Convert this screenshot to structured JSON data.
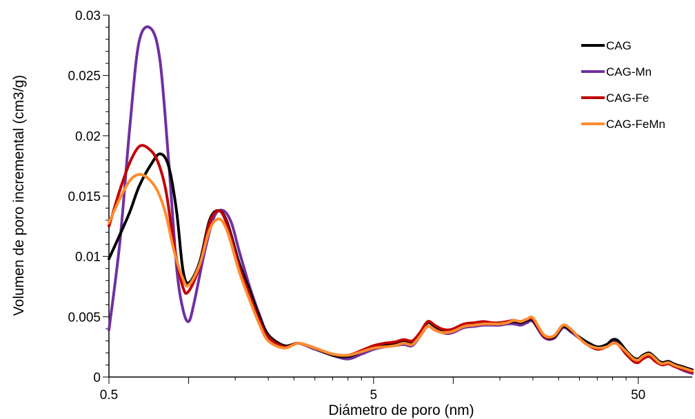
{
  "chart_data": {
    "type": "line",
    "xlabel": "Diámetro de poro (nm)",
    "ylabel": "Volumen de poro incremental (cm3/g)",
    "x_scale": "log",
    "xlim": [
      0.5,
      80
    ],
    "ylim": [
      0,
      0.03
    ],
    "x_ticks": [
      {
        "value": 0.5,
        "label": "0.5"
      },
      {
        "value": 5,
        "label": "5"
      },
      {
        "value": 50,
        "label": "50"
      }
    ],
    "y_ticks": [
      {
        "value": 0,
        "label": "0"
      },
      {
        "value": 0.005,
        "label": "0.005"
      },
      {
        "value": 0.01,
        "label": "0.01"
      },
      {
        "value": 0.015,
        "label": "0.015"
      },
      {
        "value": 0.02,
        "label": "0.02"
      },
      {
        "value": 0.025,
        "label": "0.025"
      },
      {
        "value": 0.03,
        "label": "0.03"
      }
    ],
    "grid": false,
    "legend_position": "top-right",
    "series": [
      {
        "name": "CAG",
        "color": "#000000",
        "x": [
          0.5,
          0.55,
          0.6,
          0.65,
          0.72,
          0.78,
          0.84,
          0.9,
          0.95,
          1.0,
          1.1,
          1.2,
          1.3,
          1.4,
          1.55,
          1.7,
          1.85,
          2.0,
          2.3,
          2.6,
          3.0,
          3.5,
          4.0,
          4.5,
          5.0,
          5.5,
          6.0,
          6.5,
          7.0,
          7.5,
          8.0,
          8.5,
          9.0,
          9.5,
          10.0,
          11,
          12,
          13,
          14,
          15,
          16,
          17,
          18,
          19,
          20,
          22,
          24,
          26,
          28,
          30,
          32,
          35,
          38,
          40,
          42,
          45,
          48,
          50,
          52,
          55,
          58,
          60,
          62,
          65,
          68,
          70,
          75,
          80
        ],
        "y": [
          0.0098,
          0.0118,
          0.0137,
          0.0158,
          0.0176,
          0.0185,
          0.0175,
          0.0138,
          0.009,
          0.0078,
          0.0095,
          0.013,
          0.0138,
          0.0128,
          0.0095,
          0.0072,
          0.005,
          0.0035,
          0.0026,
          0.0028,
          0.0024,
          0.0018,
          0.0017,
          0.0021,
          0.0025,
          0.0027,
          0.0028,
          0.003,
          0.0029,
          0.0036,
          0.0045,
          0.0042,
          0.0039,
          0.0038,
          0.0039,
          0.0043,
          0.0044,
          0.0045,
          0.0044,
          0.0044,
          0.0045,
          0.0046,
          0.0045,
          0.0047,
          0.0047,
          0.0034,
          0.0033,
          0.0042,
          0.0038,
          0.0033,
          0.0029,
          0.0025,
          0.0027,
          0.0031,
          0.003,
          0.0022,
          0.0016,
          0.0015,
          0.0018,
          0.002,
          0.0016,
          0.0013,
          0.0012,
          0.0013,
          0.0011,
          0.001,
          0.0008,
          0.0006
        ]
      },
      {
        "name": "CAG-Mn",
        "color": "#7030A0",
        "x": [
          0.5,
          0.55,
          0.6,
          0.65,
          0.72,
          0.78,
          0.84,
          0.9,
          0.95,
          1.0,
          1.05,
          1.15,
          1.25,
          1.35,
          1.45,
          1.55,
          1.7,
          1.85,
          2.0,
          2.3,
          2.6,
          3.0,
          3.5,
          4.0,
          4.5,
          5.0,
          5.5,
          6.0,
          6.5,
          7.0,
          7.5,
          8.0,
          8.5,
          9.0,
          9.5,
          10.0,
          11,
          12,
          13,
          14,
          15,
          16,
          17,
          18,
          19,
          20,
          22,
          24,
          26,
          28,
          30,
          32,
          35,
          38,
          40,
          42,
          45,
          48,
          50,
          52,
          55,
          58,
          60,
          62,
          65,
          68,
          70,
          75,
          80
        ],
        "y": [
          0.0039,
          0.0112,
          0.0208,
          0.0278,
          0.0289,
          0.0262,
          0.018,
          0.0092,
          0.0057,
          0.0046,
          0.0062,
          0.0104,
          0.0133,
          0.0138,
          0.0128,
          0.0105,
          0.0075,
          0.0052,
          0.0035,
          0.0025,
          0.0028,
          0.0023,
          0.0018,
          0.0015,
          0.0019,
          0.0023,
          0.0025,
          0.0026,
          0.0027,
          0.0026,
          0.0034,
          0.0042,
          0.0039,
          0.0037,
          0.0036,
          0.0037,
          0.0041,
          0.0042,
          0.0043,
          0.0043,
          0.0043,
          0.0044,
          0.0044,
          0.0043,
          0.0045,
          0.0046,
          0.0033,
          0.0032,
          0.0041,
          0.0037,
          0.0032,
          0.0028,
          0.0024,
          0.0026,
          0.0029,
          0.0028,
          0.0021,
          0.0015,
          0.0014,
          0.0017,
          0.0019,
          0.0015,
          0.0012,
          0.0011,
          0.0012,
          0.001,
          0.0008,
          0.0005,
          0.0003
        ]
      },
      {
        "name": "CAG-Fe",
        "color": "#C00000",
        "x": [
          0.5,
          0.55,
          0.6,
          0.65,
          0.7,
          0.76,
          0.82,
          0.88,
          0.95,
          1.0,
          1.1,
          1.2,
          1.3,
          1.4,
          1.55,
          1.7,
          1.85,
          2.0,
          2.3,
          2.6,
          3.0,
          3.5,
          4.0,
          4.5,
          5.0,
          5.5,
          6.0,
          6.5,
          7.0,
          7.5,
          8.0,
          8.5,
          9.0,
          9.5,
          10.0,
          11,
          12,
          13,
          14,
          15,
          16,
          17,
          18,
          19,
          20,
          22,
          24,
          26,
          28,
          30,
          32,
          35,
          38,
          40,
          42,
          45,
          48,
          50,
          52,
          55,
          58,
          60,
          62,
          65,
          68,
          70,
          75,
          80
        ],
        "y": [
          0.0125,
          0.0155,
          0.0178,
          0.0191,
          0.019,
          0.018,
          0.0155,
          0.011,
          0.0075,
          0.0071,
          0.0092,
          0.0128,
          0.0138,
          0.0126,
          0.0092,
          0.0068,
          0.0047,
          0.0033,
          0.0025,
          0.0028,
          0.0024,
          0.0019,
          0.0018,
          0.0022,
          0.0026,
          0.0028,
          0.0029,
          0.0031,
          0.003,
          0.0037,
          0.0046,
          0.0043,
          0.004,
          0.0039,
          0.004,
          0.0044,
          0.0045,
          0.0046,
          0.0045,
          0.0045,
          0.0046,
          0.0047,
          0.0046,
          0.0048,
          0.0048,
          0.0034,
          0.0034,
          0.0043,
          0.0039,
          0.0032,
          0.0027,
          0.0023,
          0.0025,
          0.0028,
          0.0027,
          0.0019,
          0.0013,
          0.0012,
          0.0015,
          0.0017,
          0.0013,
          0.0011,
          0.001,
          0.0011,
          0.0009,
          0.0008,
          0.0006,
          0.0004
        ]
      },
      {
        "name": "CAG-FeMn",
        "color": "#FF8C2F",
        "x": [
          0.5,
          0.55,
          0.6,
          0.65,
          0.7,
          0.76,
          0.82,
          0.88,
          0.95,
          1.0,
          1.1,
          1.2,
          1.3,
          1.4,
          1.55,
          1.7,
          1.85,
          2.0,
          2.3,
          2.6,
          3.0,
          3.5,
          4.0,
          4.5,
          5.0,
          5.5,
          6.0,
          6.5,
          7.0,
          7.5,
          8.0,
          8.5,
          9.0,
          9.5,
          10.0,
          11,
          12,
          13,
          14,
          15,
          16,
          17,
          18,
          19,
          20,
          22,
          24,
          26,
          28,
          30,
          32,
          35,
          38,
          40,
          42,
          45,
          48,
          50,
          52,
          55,
          58,
          60,
          62,
          65,
          68,
          70,
          75,
          80
        ],
        "y": [
          0.0128,
          0.0148,
          0.0163,
          0.0168,
          0.0165,
          0.0155,
          0.0135,
          0.0105,
          0.0082,
          0.0076,
          0.0093,
          0.0122,
          0.0131,
          0.0121,
          0.0088,
          0.0064,
          0.0044,
          0.003,
          0.0024,
          0.0028,
          0.0024,
          0.0019,
          0.0018,
          0.0021,
          0.0024,
          0.0025,
          0.0026,
          0.0028,
          0.0027,
          0.0034,
          0.0042,
          0.0039,
          0.0037,
          0.0037,
          0.0038,
          0.0042,
          0.0043,
          0.0044,
          0.0044,
          0.0044,
          0.0045,
          0.0047,
          0.0046,
          0.0048,
          0.0049,
          0.0035,
          0.0034,
          0.0043,
          0.0039,
          0.0032,
          0.0027,
          0.0024,
          0.0025,
          0.0028,
          0.0027,
          0.0021,
          0.0015,
          0.0014,
          0.0017,
          0.0019,
          0.0015,
          0.0012,
          0.0011,
          0.0012,
          0.001,
          0.0009,
          0.0007,
          0.0005
        ]
      }
    ]
  }
}
